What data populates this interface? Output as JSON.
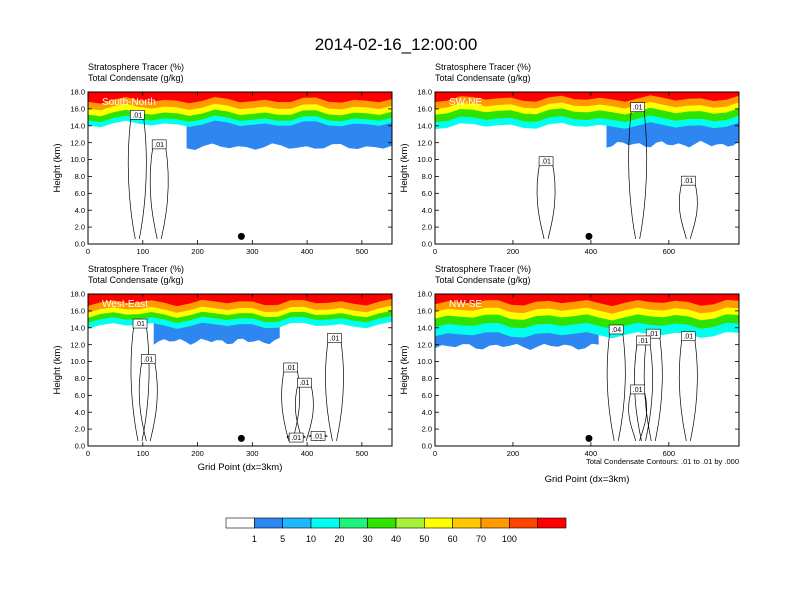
{
  "title": "2014-02-16_12:00:00",
  "chart_data": {
    "type": "heatmap",
    "variables": [
      "Stratosphere Tracer",
      "Total Condensate"
    ],
    "units": [
      "(%)",
      "(g/kg)"
    ],
    "ylabel": "Height (km)",
    "xlabel": "Grid Point (dx=3km)",
    "ylim": [
      0,
      18
    ],
    "yticks": [
      "0.0",
      "2.0",
      "4.0",
      "6.0",
      "8.0",
      "10.0",
      "12.0",
      "14.0",
      "16.0",
      "18.0"
    ],
    "panels": [
      {
        "name": "South-North",
        "xlim": [
          0,
          555
        ],
        "xticks": [
          0,
          100,
          200,
          300,
          400,
          500
        ],
        "marker_x": 280,
        "tracer_levels": [
          {
            "pct": 100,
            "x": [
              0,
              555
            ],
            "y": [
              17.0,
              17.0
            ]
          },
          {
            "pct": 70,
            "x": [
              0,
              555
            ],
            "y": [
              16.2,
              16.2
            ]
          },
          {
            "pct": 50,
            "x": [
              0,
              555
            ],
            "y": [
              15.5,
              15.5
            ]
          },
          {
            "pct": 30,
            "x": [
              0,
              555
            ],
            "y": [
              14.8,
              14.8
            ]
          },
          {
            "pct": 10,
            "x": [
              0,
              555
            ],
            "y": [
              14.2,
              14.2
            ]
          },
          {
            "pct": 5,
            "x": [
              180,
              555
            ],
            "y": [
              11.5,
              11.5
            ]
          }
        ],
        "contour_labels": [
          {
            "text": ".01",
            "x": 90,
            "y": 15.3
          },
          {
            "text": ".01",
            "x": 130,
            "y": 11.8
          }
        ]
      },
      {
        "name": "SW-NE",
        "xlim": [
          0,
          780
        ],
        "xticks": [
          0,
          200,
          400,
          600
        ],
        "marker_x": 395,
        "tracer_levels": [
          {
            "pct": 100,
            "x": [
              0,
              780
            ],
            "y": [
              17.2,
              17.2
            ]
          },
          {
            "pct": 70,
            "x": [
              0,
              780
            ],
            "y": [
              16.4,
              16.4
            ]
          },
          {
            "pct": 50,
            "x": [
              0,
              780
            ],
            "y": [
              15.7,
              15.7
            ]
          },
          {
            "pct": 30,
            "x": [
              0,
              780
            ],
            "y": [
              14.8,
              14.8
            ]
          },
          {
            "pct": 10,
            "x": [
              0,
              780
            ],
            "y": [
              14.0,
              14.0
            ]
          },
          {
            "pct": 5,
            "x": [
              440,
              780
            ],
            "y": [
              11.8,
              11.8
            ]
          }
        ],
        "contour_labels": [
          {
            "text": ".01",
            "x": 520,
            "y": 16.2
          },
          {
            "text": ".01",
            "x": 285,
            "y": 9.8
          },
          {
            "text": ".01",
            "x": 650,
            "y": 7.5
          }
        ]
      },
      {
        "name": "West-East",
        "xlim": [
          0,
          555
        ],
        "xticks": [
          0,
          100,
          200,
          300,
          400,
          500
        ],
        "marker_x": 280,
        "tracer_levels": [
          {
            "pct": 100,
            "x": [
              0,
              555
            ],
            "y": [
              17.0,
              17.0
            ]
          },
          {
            "pct": 70,
            "x": [
              0,
              555
            ],
            "y": [
              16.2,
              16.2
            ]
          },
          {
            "pct": 50,
            "x": [
              0,
              555
            ],
            "y": [
              15.6,
              15.6
            ]
          },
          {
            "pct": 30,
            "x": [
              0,
              555
            ],
            "y": [
              15.0,
              15.0
            ]
          },
          {
            "pct": 10,
            "x": [
              0,
              555
            ],
            "y": [
              14.3,
              14.3
            ]
          },
          {
            "pct": 5,
            "x": [
              120,
              350
            ],
            "y": [
              12.4,
              12.4
            ]
          }
        ],
        "contour_labels": [
          {
            "text": ".01",
            "x": 95,
            "y": 14.5
          },
          {
            "text": ".01",
            "x": 110,
            "y": 10.3
          },
          {
            "text": ".01",
            "x": 370,
            "y": 9.3
          },
          {
            "text": ".01",
            "x": 395,
            "y": 7.5
          },
          {
            "text": ".01",
            "x": 450,
            "y": 12.8
          },
          {
            "text": ".01",
            "x": 380,
            "y": 1.0
          },
          {
            "text": ".01",
            "x": 420,
            "y": 1.2
          }
        ]
      },
      {
        "name": "NW-SE",
        "xlim": [
          0,
          780
        ],
        "xticks": [
          0,
          200,
          400,
          600
        ],
        "marker_x": 395,
        "tracer_levels": [
          {
            "pct": 100,
            "x": [
              0,
              780
            ],
            "y": [
              17.0,
              17.0
            ]
          },
          {
            "pct": 70,
            "x": [
              0,
              780
            ],
            "y": [
              16.1,
              16.1
            ]
          },
          {
            "pct": 50,
            "x": [
              0,
              780
            ],
            "y": [
              15.3,
              15.3
            ]
          },
          {
            "pct": 30,
            "x": [
              0,
              780
            ],
            "y": [
              14.3,
              14.3
            ]
          },
          {
            "pct": 10,
            "x": [
              0,
              780
            ],
            "y": [
              13.2,
              13.2
            ]
          },
          {
            "pct": 5,
            "x": [
              0,
              420
            ],
            "y": [
              11.8,
              11.8
            ]
          }
        ],
        "contour_labels": [
          {
            "text": ".04",
            "x": 465,
            "y": 13.8
          },
          {
            "text": ".01",
            "x": 560,
            "y": 13.3
          },
          {
            "text": ".01",
            "x": 650,
            "y": 13.0
          },
          {
            "text": ".01",
            "x": 535,
            "y": 12.5
          },
          {
            "text": ".01",
            "x": 520,
            "y": 6.7
          }
        ]
      }
    ],
    "colorbar": {
      "labels": [
        "1",
        "5",
        "10",
        "20",
        "30",
        "40",
        "50",
        "60",
        "70",
        "100"
      ],
      "colors": [
        "#ffffff",
        "#2e86f0",
        "#1fb7ff",
        "#00ffee",
        "#1ef27a",
        "#2fe300",
        "#a6f23a",
        "#ffff00",
        "#ffc800",
        "#ff9a00",
        "#ff4500",
        "#ff0000"
      ]
    },
    "contour_note": "Total Condensate Contours: .01 to .01 by .000"
  }
}
